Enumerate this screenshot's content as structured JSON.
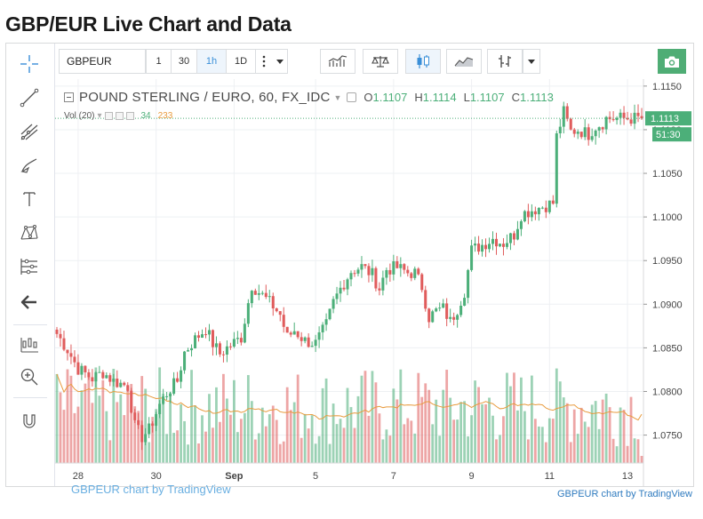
{
  "page": {
    "title": "GBP/EUR Live Chart and Data",
    "attribution": "GBPEUR chart by TradingView"
  },
  "toolbar": {
    "symbol": "GBPEUR",
    "intervals": [
      "1",
      "30",
      "1h",
      "1D"
    ],
    "active_interval": "1h"
  },
  "legend": {
    "symbol_line": "POUND STERLING / EURO, 60, FX_IDC",
    "open_label": "O",
    "open": "1.1107",
    "high_label": "H",
    "high": "1.1114",
    "low_label": "L",
    "low": "1.1107",
    "close_label": "C",
    "close": "1.1113",
    "vol_label": "Vol (20)",
    "vol_value": "34",
    "vol_ma": "233"
  },
  "watermark": "GBPEUR chart by TradingView",
  "colors": {
    "up": "#4caf79",
    "down": "#e05c5c",
    "vol_ma": "#e89a3c",
    "accent": "#3a8fd8",
    "grid": "#eef0f3"
  },
  "chart_data": {
    "type": "candlestick",
    "title": "POUND STERLING / EURO, 60, FX_IDC",
    "ylim": [
      1.0718,
      1.1158
    ],
    "y_ticks": [
      "1.1150",
      "1.1100",
      "1.1050",
      "1.1000",
      "1.0950",
      "1.0900",
      "1.0850",
      "1.0800",
      "1.0750"
    ],
    "x_tick_labels": [
      "28",
      "30",
      "Sep",
      "5",
      "7",
      "9",
      "11",
      "13"
    ],
    "x_tick_positions": [
      6,
      28,
      50,
      73,
      95,
      117,
      139,
      161
    ],
    "x_count": 166,
    "price_path": [
      [
        0,
        1.0866
      ],
      [
        3,
        1.0848
      ],
      [
        6,
        1.0826
      ],
      [
        10,
        1.0815
      ],
      [
        13,
        1.0822
      ],
      [
        16,
        1.0812
      ],
      [
        20,
        1.0806
      ],
      [
        22,
        1.076
      ],
      [
        24,
        1.0748
      ],
      [
        26,
        1.0756
      ],
      [
        29,
        1.0785
      ],
      [
        31,
        1.0798
      ],
      [
        34,
        1.0812
      ],
      [
        36,
        1.0845
      ],
      [
        39,
        1.086
      ],
      [
        42,
        1.0872
      ],
      [
        44,
        1.0855
      ],
      [
        46,
        1.0843
      ],
      [
        48,
        1.085
      ],
      [
        52,
        1.0862
      ],
      [
        55,
        1.0922
      ],
      [
        58,
        1.091
      ],
      [
        61,
        1.0898
      ],
      [
        63,
        1.0888
      ],
      [
        65,
        1.0862
      ],
      [
        67,
        1.087
      ],
      [
        70,
        1.0858
      ],
      [
        73,
        1.0855
      ],
      [
        76,
        1.0876
      ],
      [
        78,
        1.0902
      ],
      [
        80,
        1.0918
      ],
      [
        83,
        1.0938
      ],
      [
        86,
        1.0943
      ],
      [
        89,
        1.0934
      ],
      [
        91,
        1.0918
      ],
      [
        93,
        1.094
      ],
      [
        96,
        1.0942
      ],
      [
        99,
        1.0936
      ],
      [
        101,
        1.0936
      ],
      [
        103,
        1.092
      ],
      [
        105,
        1.0885
      ],
      [
        107,
        1.0892
      ],
      [
        109,
        1.0895
      ],
      [
        111,
        1.088
      ],
      [
        113,
        1.0895
      ],
      [
        115,
        1.0915
      ],
      [
        117,
        1.0962
      ],
      [
        120,
        1.0968
      ],
      [
        123,
        1.0975
      ],
      [
        126,
        1.097
      ],
      [
        129,
        1.098
      ],
      [
        131,
        1.1003
      ],
      [
        134,
        1.1008
      ],
      [
        137,
        1.1012
      ],
      [
        140,
        1.1016
      ],
      [
        141,
        1.1092
      ],
      [
        143,
        1.112
      ],
      [
        145,
        1.1098
      ],
      [
        147,
        1.11
      ],
      [
        150,
        1.1095
      ],
      [
        152,
        1.1104
      ],
      [
        154,
        1.1108
      ],
      [
        155,
        1.1113
      ]
    ],
    "volume": {
      "ylim": [
        0,
        560
      ],
      "ma_period": 20,
      "last_value": 34,
      "last_ma": 233
    },
    "last_price": "1.1113",
    "countdown": "51:30"
  }
}
